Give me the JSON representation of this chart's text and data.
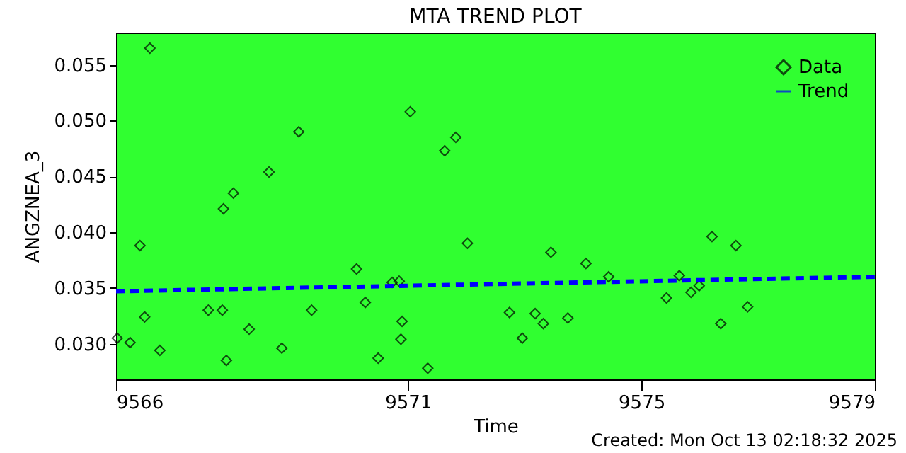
{
  "chart_data": {
    "type": "scatter",
    "title": "MTA TREND PLOT",
    "xlabel": "Time",
    "ylabel": "ANGZNEA_3",
    "annotations": [
      "Created: Mon Oct 13 02:18:32 2025"
    ],
    "xlim": [
      9566,
      9579
    ],
    "xticks": [
      9566,
      9571,
      9575,
      9579
    ],
    "ylim": [
      0.0268,
      0.0579
    ],
    "yticks": [
      {
        "value": 0.03,
        "label": "0.030"
      },
      0.035,
      {
        "value": 0.04,
        "label": "0.040"
      },
      0.045,
      {
        "value": 0.05,
        "label": "0.050"
      },
      0.055
    ],
    "grid": false,
    "legend": "top right",
    "series": [
      {
        "name": "Data",
        "marker": "diamond",
        "color": "#000000",
        "x": [
          9566.02,
          9566.24,
          9566.41,
          9566.49,
          9566.58,
          9566.75,
          9567.58,
          9567.82,
          9567.84,
          9567.89,
          9568.01,
          9568.28,
          9568.62,
          9568.84,
          9569.13,
          9569.35,
          9570.12,
          9570.27,
          9570.49,
          9570.73,
          9570.85,
          9570.88,
          9570.9,
          9571.04,
          9571.34,
          9571.63,
          9571.82,
          9572.02,
          9572.74,
          9572.96,
          9573.18,
          9573.32,
          9573.45,
          9573.74,
          9574.05,
          9574.44,
          9575.43,
          9575.65,
          9575.85,
          9575.99,
          9576.21,
          9576.36,
          9576.62,
          9576.82
        ],
        "values": [
          0.0305,
          0.0301,
          0.0388,
          0.0324,
          0.0565,
          0.0294,
          0.033,
          0.033,
          0.0421,
          0.0285,
          0.0435,
          0.0313,
          0.0454,
          0.0296,
          0.049,
          0.033,
          0.0367,
          0.0337,
          0.0287,
          0.0355,
          0.0356,
          0.0304,
          0.032,
          0.0508,
          0.0278,
          0.0473,
          0.0485,
          0.039,
          0.0328,
          0.0305,
          0.0327,
          0.0318,
          0.0382,
          0.0323,
          0.0372,
          0.036,
          0.0341,
          0.0361,
          0.0346,
          0.0352,
          0.0396,
          0.0318,
          0.0388,
          0.0333
        ]
      },
      {
        "name": "Trend",
        "type": "line",
        "marker": "none",
        "line_style": "dashed",
        "color": "#0000ff",
        "x": [
          9566,
          9579
        ],
        "values": [
          0.0347,
          0.036
        ]
      }
    ]
  }
}
